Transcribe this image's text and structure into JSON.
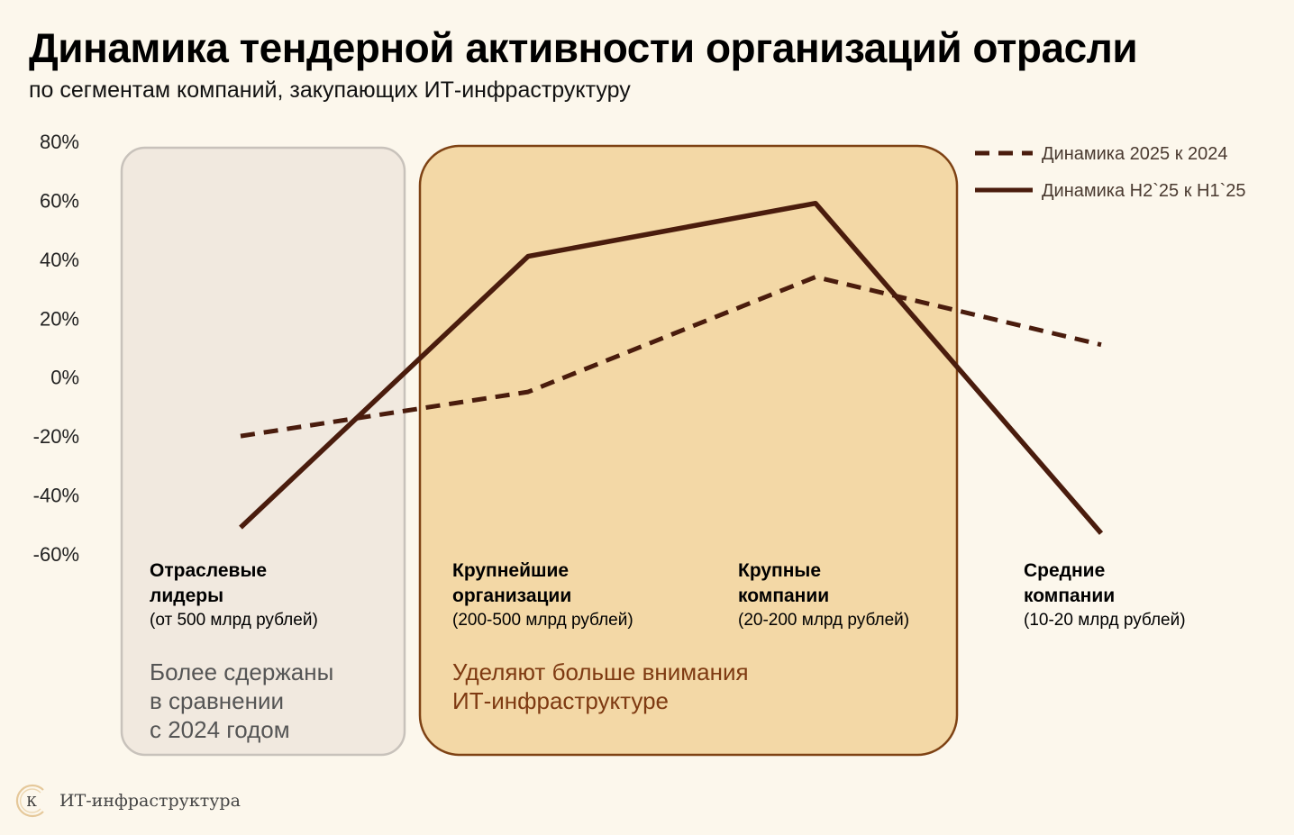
{
  "title": "Динамика тендерной активности организаций отрасли",
  "subtitle": "по сегментам компаний, закупающих ИТ-инфраструктуру",
  "chart_data": {
    "type": "line",
    "y_ticks": [
      "80%",
      "60%",
      "40%",
      "20%",
      "0%",
      "-20%",
      "-40%",
      "-60%"
    ],
    "ylim": [
      -60,
      80
    ],
    "categories": [
      {
        "name_lines": [
          "Отраслевые",
          "лидеры"
        ],
        "range": "(от 500 млрд рублей)"
      },
      {
        "name_lines": [
          "Крупнейшие",
          "организации"
        ],
        "range": "(200-500 млрд рублей)"
      },
      {
        "name_lines": [
          "Крупные",
          "компании"
        ],
        "range": "(20-200 млрд рублей)"
      },
      {
        "name_lines": [
          "Средние",
          "компании"
        ],
        "range": "(10-20 млрд рублей)"
      }
    ],
    "series": [
      {
        "name": "Динамика 2025 к 2024",
        "style": "dashed",
        "values": [
          -20,
          -5,
          34,
          11
        ]
      },
      {
        "name": "Динамика H2`25 к H1`25",
        "style": "solid",
        "values": [
          -51,
          41,
          59,
          -53
        ]
      }
    ],
    "legend": "top-right",
    "grid": false
  },
  "colors": {
    "background": "#fcf7ec",
    "line": "#4a1c0d",
    "panel_grey_fill": "#f1e9df",
    "panel_grey_border": "#c8c2bb",
    "panel_orange_fill": "#f3d8a6",
    "panel_orange_border": "#7e4214",
    "note_grey": "#555555",
    "note_brown": "#7e3a12"
  },
  "notes": {
    "left_lines": [
      "Более сдержаны",
      "в сравнении",
      "с 2024 годом"
    ],
    "middle_lines": [
      "Уделяют больше внимания",
      "ИТ-инфраструктуре"
    ]
  },
  "footer": {
    "logo_letter": "К",
    "text": "ИТ-инфраструктура",
    "logo_icon": "circle-logo-icon"
  }
}
